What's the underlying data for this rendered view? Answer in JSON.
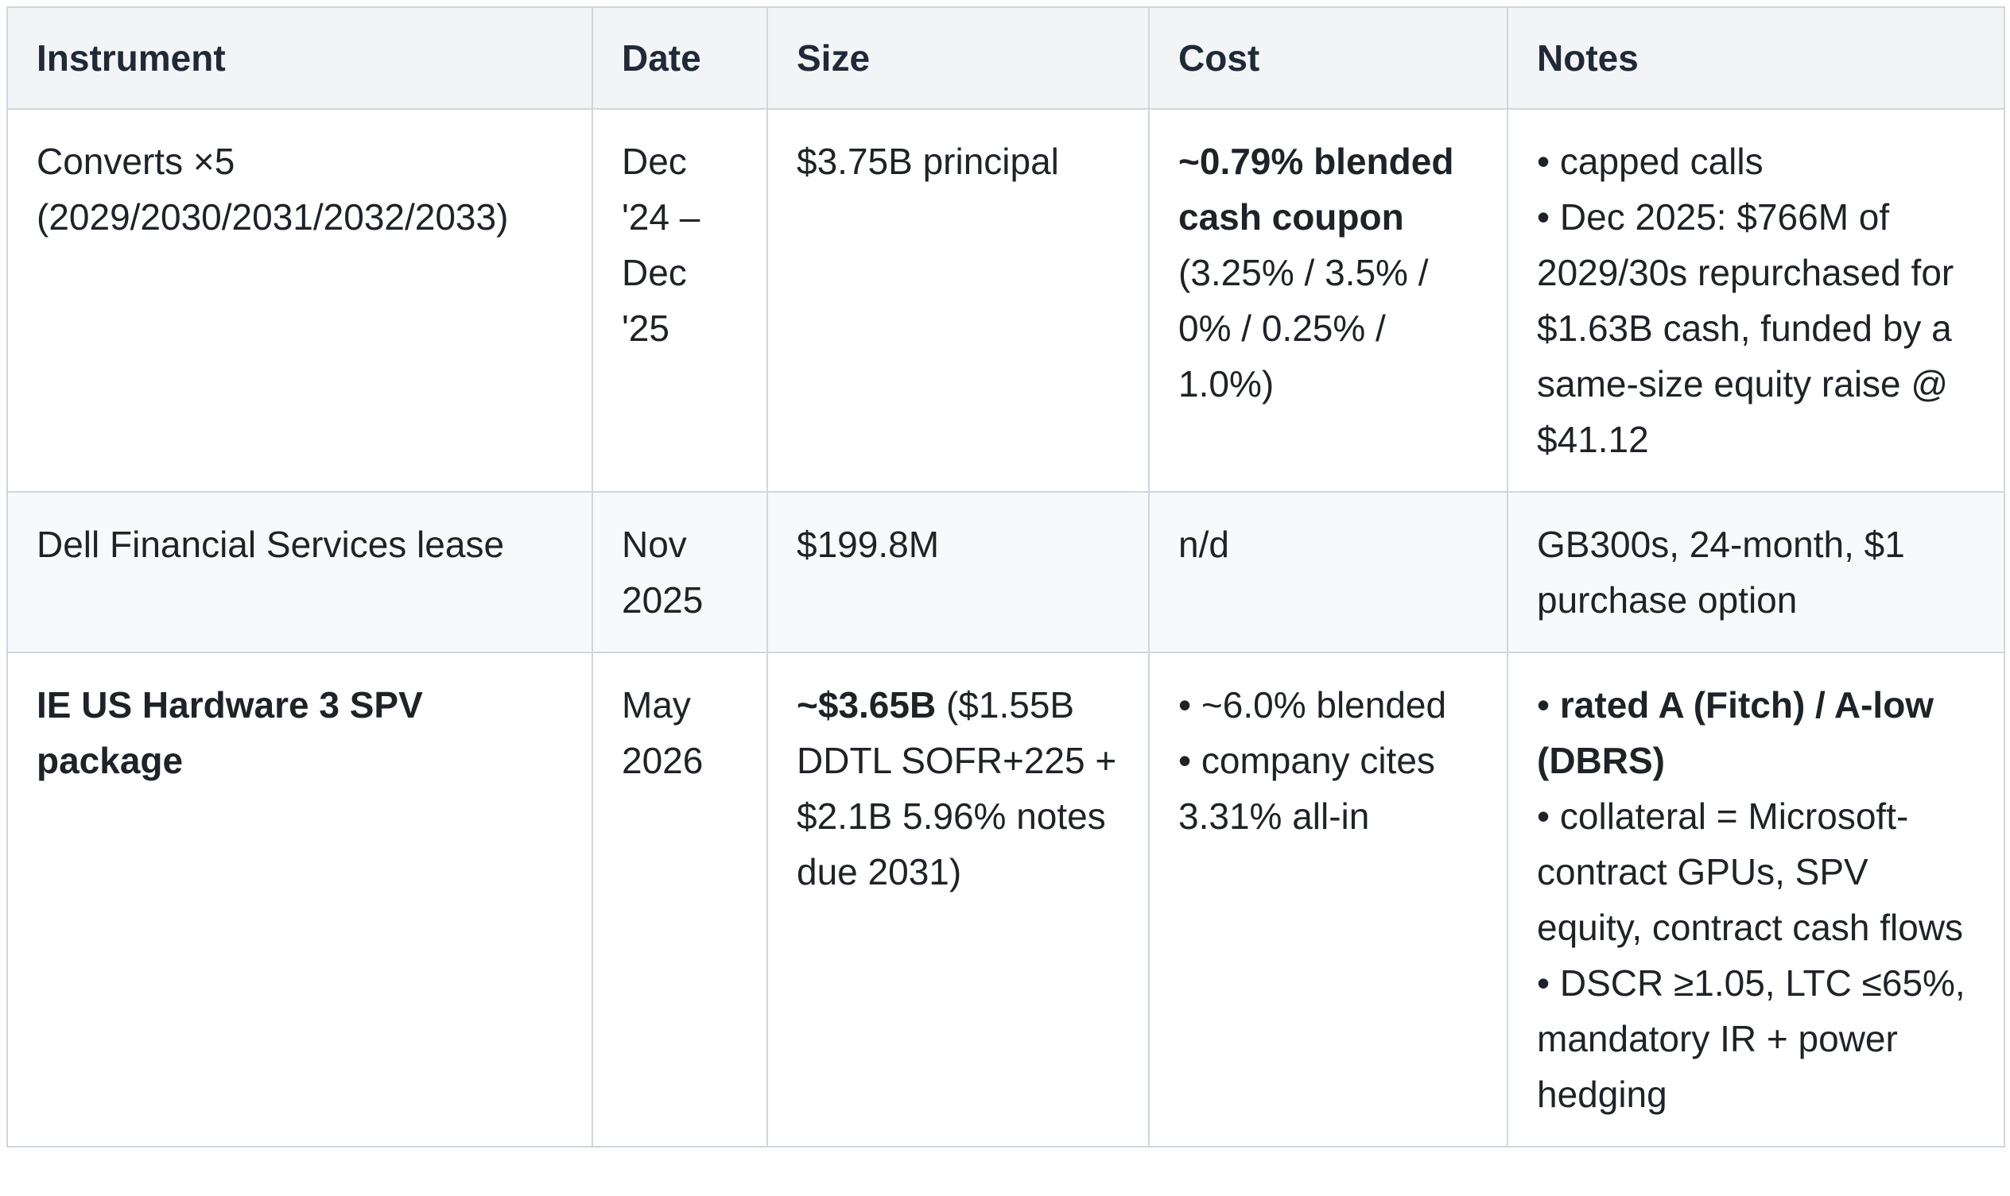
{
  "headers": [
    "Instrument",
    "Date",
    "Size",
    "Cost",
    "Notes"
  ],
  "rows": [
    {
      "instrument": [
        "Converts ×5",
        "(2029/2030/2031/2032/2033)"
      ],
      "date": [
        "Dec",
        "'24 –",
        "Dec",
        "'25"
      ],
      "size": "$3.75B principal",
      "cost_bold": "~0.79% blended cash coupon",
      "cost_rest": "(3.25% / 3.5% / 0% / 0.25% / 1.0%)",
      "notes": [
        "• capped calls",
        "• Dec 2025: $766M of 2029/30s repurchased for $1.63B cash, funded by a same-size equity raise @ $41.12"
      ]
    },
    {
      "instrument": "Dell Financial Services lease",
      "date": [
        "Nov",
        "2025"
      ],
      "size": "$199.8M",
      "cost": "n/d",
      "notes": "GB300s, 24-month, $1 purchase option"
    },
    {
      "instrument": "IE US Hardware 3 SPV package",
      "date": [
        "May",
        "2026"
      ],
      "size_bold": "~$3.65B",
      "size_rest": " ($1.55B DDTL SOFR+225 + $2.1B 5.96% notes due 2031)",
      "cost": [
        "• ~6.0% blended",
        "• company cites 3.31% all-in"
      ],
      "notes_bullet": "• ",
      "notes_bold": "rated A (Fitch) / A-low (DBRS)",
      "notes": [
        "• collateral = Microsoft-contract GPUs, SPV equity, contract cash flows",
        "• DSCR ≥1.05, LTC ≤65%, mandatory IR + power hedging"
      ]
    }
  ]
}
